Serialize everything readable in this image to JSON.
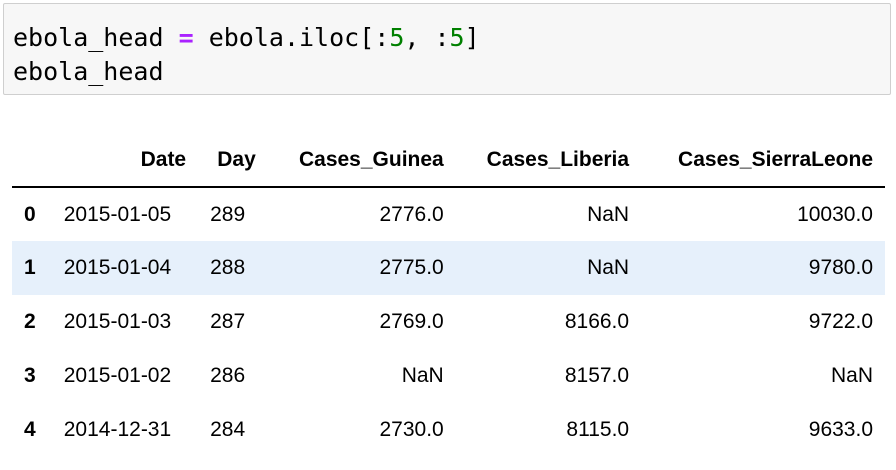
{
  "code_cell": {
    "line1": {
      "var": "ebola_head ",
      "op": "=",
      "call_start": " ebola.iloc[:",
      "num1": "5",
      "sep": ", :",
      "num2": "5",
      "end": "]"
    },
    "line2": "ebola_head"
  },
  "table": {
    "index_header": "",
    "columns": [
      "Date",
      "Day",
      "Cases_Guinea",
      "Cases_Liberia",
      "Cases_SierraLeone"
    ],
    "rows": [
      {
        "index": "0",
        "date": "2015-01-05",
        "day": "289",
        "guinea": "2776.0",
        "liberia": "NaN",
        "sierraleone": "10030.0"
      },
      {
        "index": "1",
        "date": "2015-01-04",
        "day": "288",
        "guinea": "2775.0",
        "liberia": "NaN",
        "sierraleone": "9780.0"
      },
      {
        "index": "2",
        "date": "2015-01-03",
        "day": "287",
        "guinea": "2769.0",
        "liberia": "8166.0",
        "sierraleone": "9722.0"
      },
      {
        "index": "3",
        "date": "2015-01-02",
        "day": "286",
        "guinea": "NaN",
        "liberia": "8157.0",
        "sierraleone": "NaN"
      },
      {
        "index": "4",
        "date": "2014-12-31",
        "day": "284",
        "guinea": "2730.0",
        "liberia": "8115.0",
        "sierraleone": "9633.0"
      }
    ]
  },
  "colors": {
    "code_background": "#f7f7f7",
    "code_border": "#cfcfcf",
    "operator": "#aa22ff",
    "number": "#008000",
    "row_highlight": "#e6f0fb"
  }
}
